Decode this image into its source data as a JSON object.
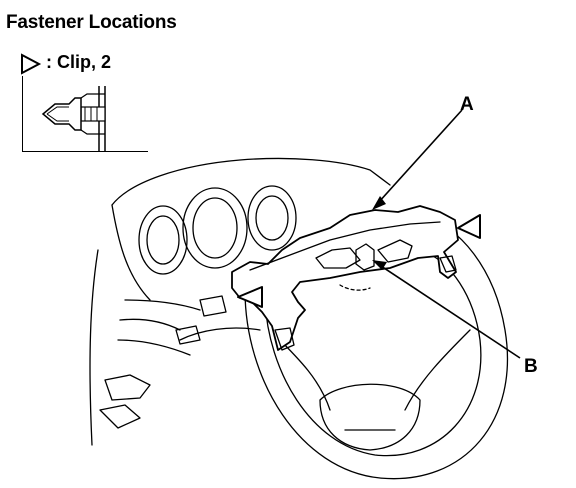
{
  "title": "Fastener Locations",
  "legend": {
    "symbol_icon": "hollow-triangle-arrow-icon",
    "label": ": Clip, 2"
  },
  "callouts": {
    "a": "A",
    "b": "B"
  }
}
